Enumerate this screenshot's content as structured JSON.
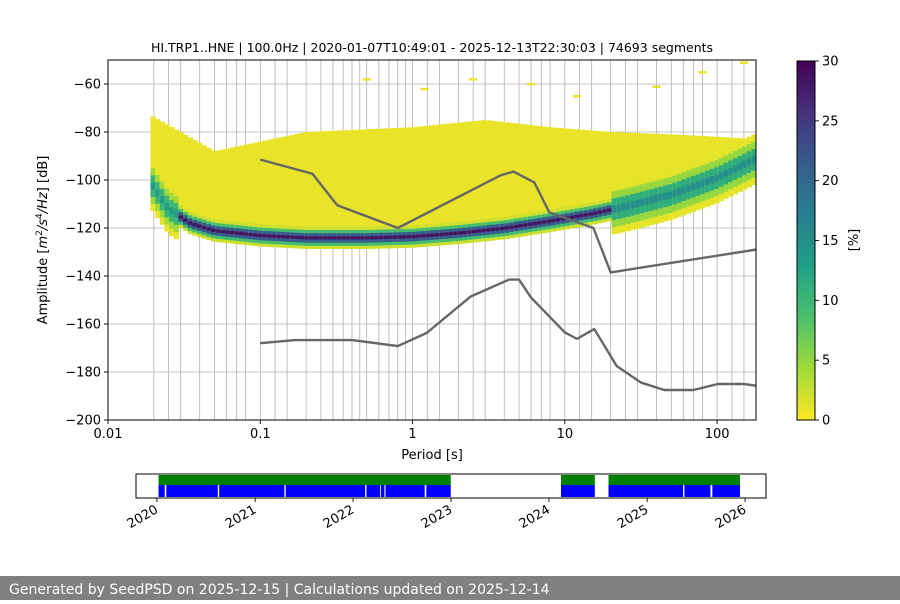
{
  "chart_data": [
    {
      "type": "heatmap",
      "title": "HI.TRP1..HNE | 100.0Hz | 2020-01-07T10:49:01 - 2025-12-13T22:30:03 | 74693 segments",
      "xlabel": "Period [s]",
      "ylabel_parts": [
        "Amplitude [",
        "m",
        "2",
        "/",
        "s",
        "4",
        "/",
        "Hz",
        "] [dB]"
      ],
      "x_scale": "log",
      "xlim": [
        0.01,
        180
      ],
      "ylim": [
        -200,
        -50
      ],
      "x_ticks": [
        {
          "v": 0.01,
          "label": "0.01"
        },
        {
          "v": 0.1,
          "label": "0.1"
        },
        {
          "v": 1,
          "label": "1"
        },
        {
          "v": 10,
          "label": "10"
        },
        {
          "v": 100,
          "label": "100"
        }
      ],
      "y_ticks": [
        {
          "v": -60,
          "label": "−60"
        },
        {
          "v": -80,
          "label": "−80"
        },
        {
          "v": -100,
          "label": "−100"
        },
        {
          "v": -120,
          "label": "−120"
        },
        {
          "v": -140,
          "label": "−140"
        },
        {
          "v": -160,
          "label": "−160"
        },
        {
          "v": -180,
          "label": "−180"
        },
        {
          "v": -200,
          "label": "−200"
        }
      ],
      "grid": "on",
      "colorbar": {
        "label": "[%]",
        "range": [
          0,
          30
        ],
        "ticks": [
          {
            "v": 0,
            "label": "0"
          },
          {
            "v": 5,
            "label": "5"
          },
          {
            "v": 10,
            "label": "10"
          },
          {
            "v": 15,
            "label": "15"
          },
          {
            "v": 20,
            "label": "20"
          },
          {
            "v": 25,
            "label": "25"
          },
          {
            "v": 30,
            "label": "30"
          }
        ],
        "colormap": [
          "#fde725",
          "#a0da39",
          "#4ac16d",
          "#1fa187",
          "#277f8e",
          "#365c8d",
          "#46327e",
          "#440154"
        ]
      },
      "ppsd_mode_curve": [
        {
          "period": 0.019,
          "db": -101
        },
        {
          "period": 0.025,
          "db": -112
        },
        {
          "period": 0.035,
          "db": -118
        },
        {
          "period": 0.05,
          "db": -121
        },
        {
          "period": 0.1,
          "db": -123
        },
        {
          "period": 0.2,
          "db": -124
        },
        {
          "period": 0.5,
          "db": -124
        },
        {
          "period": 1,
          "db": -123.5
        },
        {
          "period": 2,
          "db": -122
        },
        {
          "period": 4,
          "db": -120
        },
        {
          "period": 8,
          "db": -117
        },
        {
          "period": 15,
          "db": -114
        },
        {
          "period": 25,
          "db": -111
        },
        {
          "period": 50,
          "db": -106
        },
        {
          "period": 100,
          "db": -99
        },
        {
          "period": 180,
          "db": -91
        }
      ],
      "ppsd_spread_upper_db": [
        {
          "period": 0.019,
          "db": -73
        },
        {
          "period": 0.05,
          "db": -88
        },
        {
          "period": 0.2,
          "db": -80
        },
        {
          "period": 1,
          "db": -78
        },
        {
          "period": 3,
          "db": -75
        },
        {
          "period": 8,
          "db": -78
        },
        {
          "period": 20,
          "db": -80
        },
        {
          "period": 50,
          "db": -81
        },
        {
          "period": 100,
          "db": -82
        },
        {
          "period": 180,
          "db": -83
        }
      ],
      "ppsd_spread_lower_db": [
        {
          "period": 0.019,
          "db": -110
        },
        {
          "period": 0.05,
          "db": -122
        },
        {
          "period": 0.15,
          "db": -125
        },
        {
          "period": 0.5,
          "db": -126
        },
        {
          "period": 1,
          "db": -125
        },
        {
          "period": 3,
          "db": -123
        },
        {
          "period": 8,
          "db": -119
        },
        {
          "period": 20,
          "db": -117
        },
        {
          "period": 50,
          "db": -111
        },
        {
          "period": 100,
          "db": -104
        },
        {
          "period": 180,
          "db": -97
        }
      ],
      "ppsd_outliers_db": [
        {
          "period": 0.5,
          "db": -58
        },
        {
          "period": 1.2,
          "db": -62
        },
        {
          "period": 2.5,
          "db": -58
        },
        {
          "period": 6,
          "db": -60
        },
        {
          "period": 12,
          "db": -65
        },
        {
          "period": 40,
          "db": -61
        },
        {
          "period": 80,
          "db": -55
        },
        {
          "period": 150,
          "db": -51
        }
      ],
      "series": [
        {
          "points": [
            {
              "period": 0.1,
              "db": -91.5
            },
            {
              "period": 0.22,
              "db": -97.4
            },
            {
              "period": 0.32,
              "db": -110.5
            },
            {
              "period": 0.8,
              "db": -120.0
            },
            {
              "period": 3.8,
              "db": -98.0
            },
            {
              "period": 4.6,
              "db": -96.5
            },
            {
              "period": 6.3,
              "db": -101.0
            },
            {
              "period": 7.9,
              "db": -113.5
            },
            {
              "period": 15.4,
              "db": -120.0
            },
            {
              "period": 20.0,
              "db": -138.5
            },
            {
              "period": 180.0,
              "db": -129.0
            }
          ]
        },
        {
          "points": [
            {
              "period": 0.1,
              "db": -168.0
            },
            {
              "period": 0.17,
              "db": -166.7
            },
            {
              "period": 0.4,
              "db": -166.7
            },
            {
              "period": 0.8,
              "db": -169.2
            },
            {
              "period": 1.24,
              "db": -163.7
            },
            {
              "period": 2.4,
              "db": -148.6
            },
            {
              "period": 4.3,
              "db": -141.5
            },
            {
              "period": 5.0,
              "db": -141.5
            },
            {
              "period": 6.0,
              "db": -149.0
            },
            {
              "period": 10.0,
              "db": -163.5
            },
            {
              "period": 12.0,
              "db": -166.2
            },
            {
              "period": 15.6,
              "db": -162.1
            },
            {
              "period": 21.9,
              "db": -177.5
            },
            {
              "period": 31.6,
              "db": -184.4
            },
            {
              "period": 45.0,
              "db": -187.5
            },
            {
              "period": 70.0,
              "db": -187.5
            },
            {
              "period": 101.0,
              "db": -185.0
            },
            {
              "period": 150.0,
              "db": -185.0
            },
            {
              "period": 180.0,
              "db": -185.7
            }
          ]
        }
      ],
      "grid_periods": [
        0.02,
        0.025,
        0.03,
        0.04,
        0.05,
        0.06,
        0.07,
        0.08,
        0.1,
        0.125,
        0.15,
        0.2,
        0.25,
        0.3,
        0.35,
        0.4,
        0.45,
        0.5,
        0.6,
        0.7,
        0.8,
        0.9,
        1,
        1.25,
        1.5,
        2,
        2.5,
        3,
        4,
        5,
        6,
        7,
        8,
        10,
        12.5,
        15,
        20,
        25,
        30,
        40,
        50,
        60,
        70,
        80,
        100,
        125,
        150,
        180
      ]
    },
    {
      "type": "timeline",
      "xlim": [
        "2019-10-15",
        "2026-03-20"
      ],
      "x_ticks": [
        {
          "v": "2020-01-01",
          "label": "2020"
        },
        {
          "v": "2021-01-01",
          "label": "2021"
        },
        {
          "v": "2022-01-01",
          "label": "2022"
        },
        {
          "v": "2023-01-01",
          "label": "2023"
        },
        {
          "v": "2024-01-01",
          "label": "2024"
        },
        {
          "v": "2025-01-01",
          "label": "2025"
        },
        {
          "v": "2026-01-01",
          "label": "2026"
        }
      ],
      "colors": {
        "available": "#008000",
        "processed": "#0000ff"
      },
      "available_ranges": [
        [
          "2020-01-07",
          "2022-12-31"
        ],
        [
          "2024-02-15",
          "2024-06-20"
        ],
        [
          "2024-08-10",
          "2025-12-13"
        ]
      ],
      "processed_ranges": [
        [
          "2020-01-07",
          "2020-01-30"
        ],
        [
          "2020-02-05",
          "2020-08-15"
        ],
        [
          "2020-08-20",
          "2021-04-20"
        ],
        [
          "2021-04-25",
          "2022-02-15"
        ],
        [
          "2022-02-20",
          "2022-04-12"
        ],
        [
          "2022-04-15",
          "2022-04-28"
        ],
        [
          "2022-05-02",
          "2022-09-25"
        ],
        [
          "2022-10-01",
          "2022-12-31"
        ],
        [
          "2024-02-15",
          "2024-06-20"
        ],
        [
          "2024-08-10",
          "2025-05-15"
        ],
        [
          "2025-05-20",
          "2025-08-25"
        ],
        [
          "2025-09-01",
          "2025-12-13"
        ]
      ]
    }
  ],
  "footer": {
    "text": "Generated by SeedPSD on 2025-12-15 | Calculations updated on 2025-12-14"
  }
}
